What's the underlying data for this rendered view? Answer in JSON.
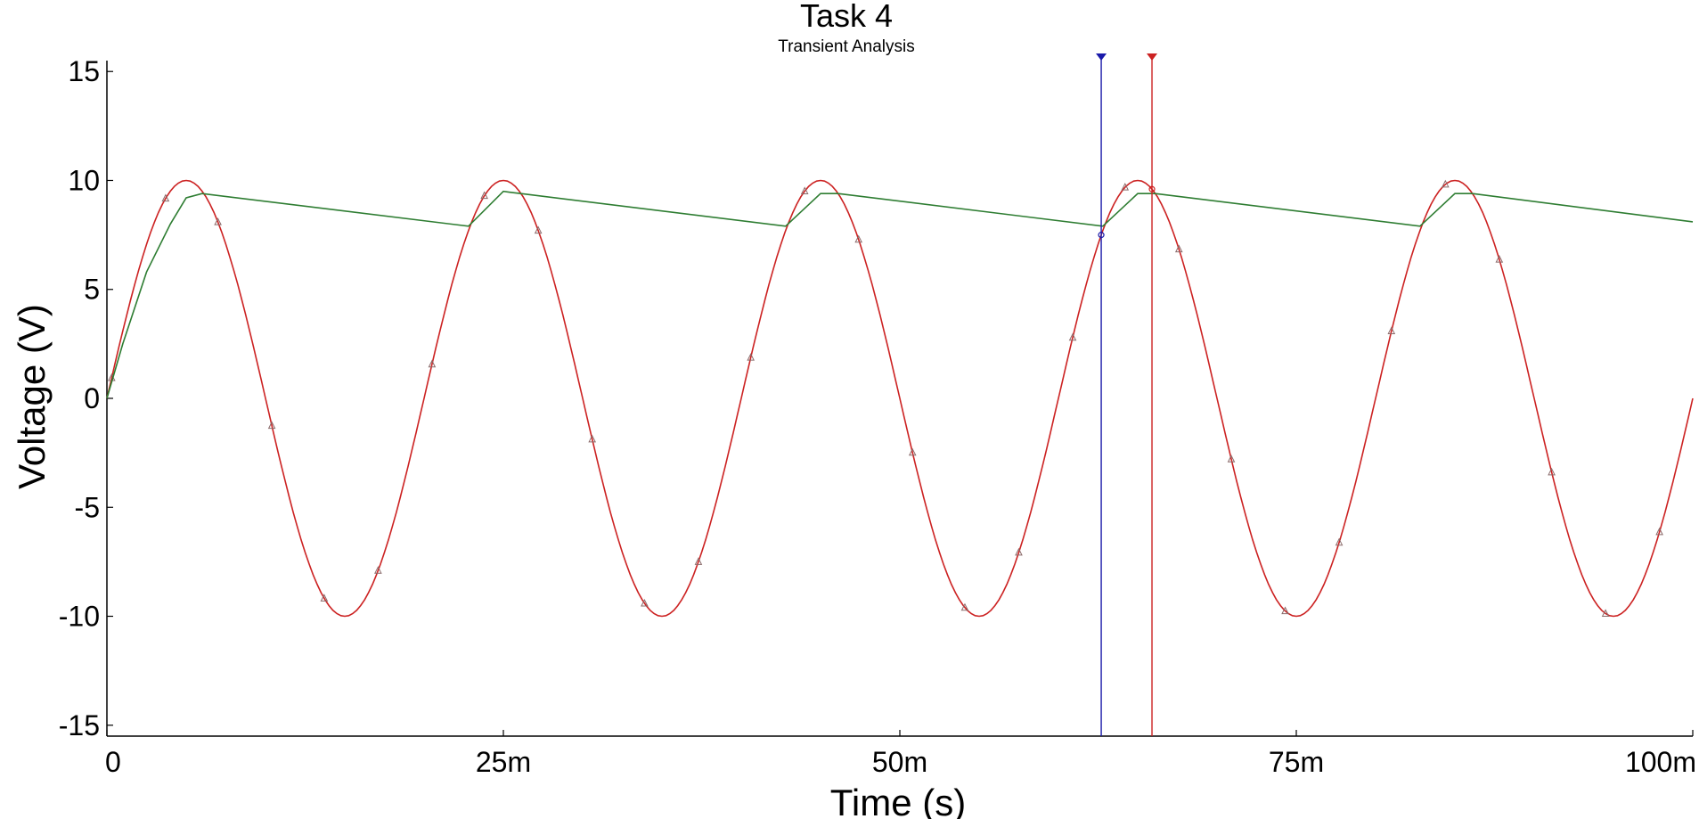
{
  "chart_data": {
    "type": "line",
    "title": "Task 4",
    "subtitle": "Transient Analysis",
    "xlabel": "Time (s)",
    "ylabel": "Voltage (V)",
    "xlim": [
      0,
      0.1
    ],
    "ylim": [
      -15.5,
      15.5
    ],
    "x_ticks": [
      {
        "value": 0,
        "label": "0"
      },
      {
        "value": 0.025,
        "label": "25m"
      },
      {
        "value": 0.05,
        "label": "50m"
      },
      {
        "value": 0.075,
        "label": "75m"
      },
      {
        "value": 0.1,
        "label": "100m"
      }
    ],
    "y_ticks": [
      {
        "value": 15,
        "label": "15"
      },
      {
        "value": 10,
        "label": "10"
      },
      {
        "value": 5,
        "label": "5"
      },
      {
        "value": 0,
        "label": "0"
      },
      {
        "value": -5,
        "label": "-5"
      },
      {
        "value": -10,
        "label": "-10"
      },
      {
        "value": -15,
        "label": "-15"
      }
    ],
    "grid": false,
    "legend": "none",
    "series": [
      {
        "color": "#cc2222",
        "marker": "triangle",
        "x": [
          0,
          0.0025,
          0.005,
          0.0075,
          0.01,
          0.0125,
          0.015,
          0.0175,
          0.02,
          0.0225,
          0.025,
          0.0275,
          0.03,
          0.0325,
          0.035,
          0.0375,
          0.04,
          0.0425,
          0.045,
          0.0475,
          0.05,
          0.0525,
          0.055,
          0.0575,
          0.06,
          0.0625,
          0.065,
          0.0675,
          0.07,
          0.0725,
          0.075,
          0.0775,
          0.08,
          0.0825,
          0.085,
          0.0875,
          0.09,
          0.0925,
          0.095,
          0.0975,
          0.1
        ],
        "y": [
          0,
          7.07,
          10,
          7.07,
          0,
          -7.07,
          -10,
          -7.07,
          0,
          7.07,
          10,
          7.07,
          0,
          -7.07,
          -10,
          -7.07,
          0,
          7.07,
          10,
          7.07,
          0,
          -7.07,
          -10,
          -7.07,
          0,
          7.07,
          10,
          7.07,
          0,
          -7.07,
          -10,
          -7.07,
          0,
          7.07,
          10,
          7.07,
          0,
          -7.07,
          -10,
          -7.07,
          0
        ],
        "marker_x": [
          0.0003,
          0.0037,
          0.007,
          0.0104,
          0.0137,
          0.0171,
          0.0205,
          0.0238,
          0.0272,
          0.0306,
          0.0339,
          0.0373,
          0.0406,
          0.044,
          0.0474,
          0.0508,
          0.0541,
          0.0575,
          0.0609,
          0.0642,
          0.0676,
          0.0709,
          0.0743,
          0.0777,
          0.081,
          0.0844,
          0.0878,
          0.0911,
          0.0945,
          0.0979
        ]
      },
      {
        "color": "#2e7d32",
        "marker": "none",
        "x": [
          0,
          0.001,
          0.0025,
          0.004,
          0.005,
          0.006,
          0.0228,
          0.025,
          0.0255,
          0.0261,
          0.0428,
          0.045,
          0.0455,
          0.0461,
          0.0628,
          0.065,
          0.0655,
          0.0661,
          0.0828,
          0.085,
          0.0855,
          0.0861,
          0.1
        ],
        "y": [
          0,
          2.5,
          5.8,
          8.0,
          9.2,
          9.4,
          7.9,
          9.5,
          9.45,
          9.4,
          7.9,
          9.4,
          9.4,
          9.4,
          7.9,
          9.4,
          9.4,
          9.4,
          7.9,
          9.4,
          9.4,
          9.4,
          8.1
        ]
      }
    ],
    "cursors": [
      {
        "x": 0.0627,
        "color": "#1a1aaa",
        "marker_y": 7.5
      },
      {
        "x": 0.0659,
        "color": "#cc2222",
        "marker_y": 9.6
      }
    ]
  }
}
